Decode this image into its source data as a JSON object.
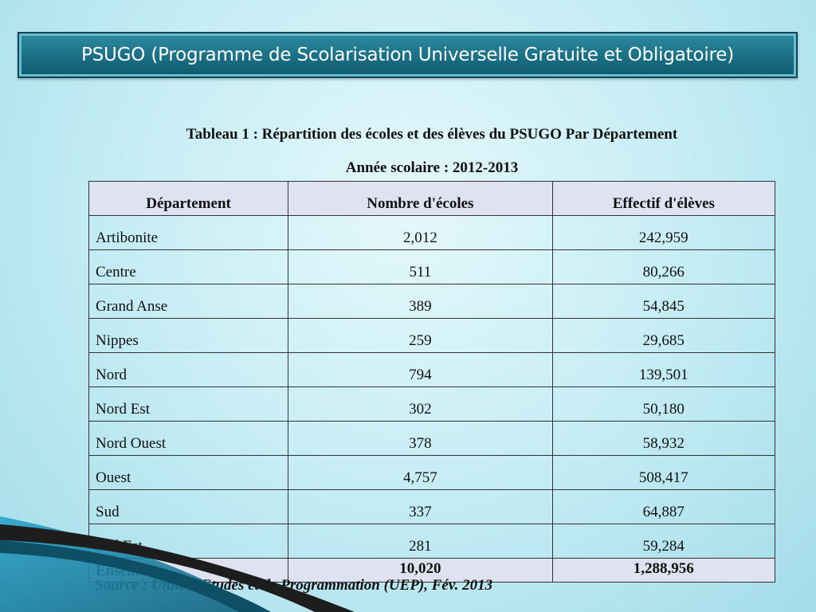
{
  "slide": {
    "title": "PSUGO (Programme de Scolarisation Universelle Gratuite et Obligatoire)"
  },
  "table": {
    "caption": "Tableau 1 : Répartition des écoles et des élèves du PSUGO Par  Département",
    "subcaption": "Année scolaire : 2012-2013",
    "headers": [
      "Département",
      "Nombre d'écoles",
      "Effectif d'élèves"
    ],
    "rows": [
      {
        "departement": "Artibonite",
        "ecoles": "2,012",
        "eleves": "242,959"
      },
      {
        "departement": "Centre",
        "ecoles": "511",
        "eleves": "80,266"
      },
      {
        "departement": "Grand Anse",
        "ecoles": "389",
        "eleves": "54,845"
      },
      {
        "departement": "Nippes",
        "ecoles": "259",
        "eleves": "29,685"
      },
      {
        "departement": "Nord",
        "ecoles": "794",
        "eleves": "139,501"
      },
      {
        "departement": "Nord Est",
        "ecoles": "302",
        "eleves": "50,180"
      },
      {
        "departement": "Nord Ouest",
        "ecoles": "378",
        "eleves": "58,932"
      },
      {
        "departement": "Ouest",
        "ecoles": "4,757",
        "eleves": "508,417"
      },
      {
        "departement": "Sud",
        "ecoles": "337",
        "eleves": "64,887"
      },
      {
        "departement": "Sud Est",
        "ecoles": "281",
        "eleves": "59,284"
      }
    ],
    "total": {
      "label": "Ensemble",
      "ecoles": "10,020",
      "eleves": "1,288,956"
    }
  },
  "source": "Source : Unité d'Etudes et de Programmation (UEP), Fév. 2013",
  "theme": {
    "title_bar": "#1b6f84",
    "header_fill": "#dfe3f1",
    "swoosh_dark": "#1d1d1d",
    "swoosh_blue": "#1f8cb0"
  }
}
